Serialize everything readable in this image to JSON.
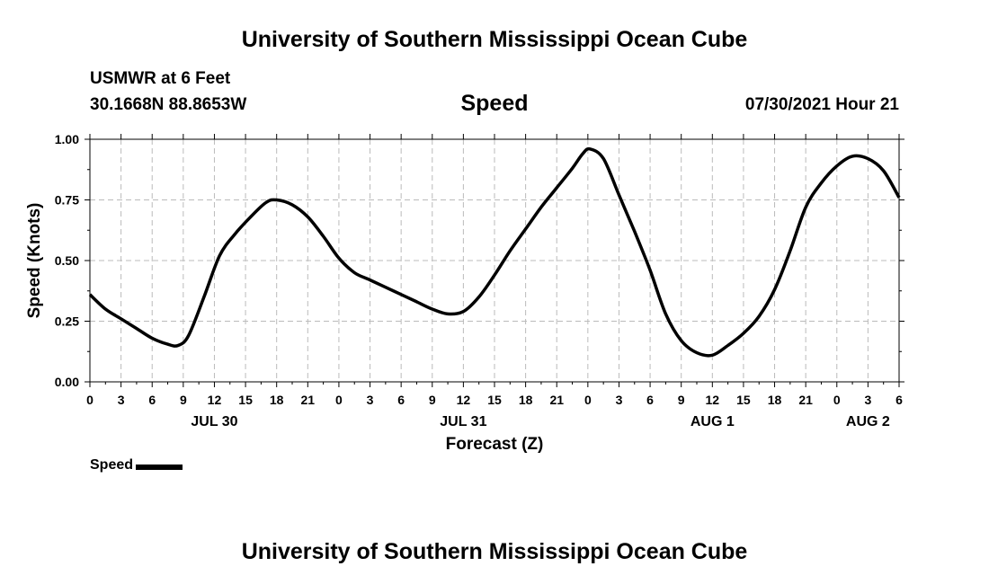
{
  "header": {
    "title": "University of Southern Mississippi Ocean Cube",
    "station": "USMWR at 6 Feet",
    "coords": "30.1668N  88.8653W",
    "date_label": "07/30/2021 Hour 21"
  },
  "footer": {
    "title": "University of Southern Mississippi Ocean Cube"
  },
  "legend": {
    "label": "Speed"
  },
  "chart_data": {
    "type": "line",
    "title": "Speed",
    "xlabel": "Forecast (Z)",
    "ylabel": "Speed (Knots)",
    "ylim": [
      0,
      1
    ],
    "yticks": [
      "0.00",
      "0.25",
      "0.50",
      "0.75",
      "1.00"
    ],
    "xlim": [
      0,
      78
    ],
    "xticks": [
      "0",
      "3",
      "6",
      "9",
      "12",
      "15",
      "18",
      "21",
      "0",
      "3",
      "6",
      "9",
      "12",
      "15",
      "18",
      "21",
      "0",
      "3",
      "6",
      "9",
      "12",
      "15",
      "18",
      "21",
      "0",
      "3",
      "6"
    ],
    "date_labels": [
      {
        "label": "JUL 30",
        "x": 12
      },
      {
        "label": "JUL 31",
        "x": 36
      },
      {
        "label": "AUG 1",
        "x": 60
      },
      {
        "label": "AUG 2",
        "x": 75
      }
    ],
    "grid": true,
    "line_color": "#000000",
    "series": [
      {
        "name": "Speed",
        "x": [
          0,
          1.5,
          3,
          4.5,
          6,
          7.5,
          8.5,
          9.5,
          11,
          12.5,
          14,
          15.5,
          17,
          18,
          19.5,
          21,
          22.5,
          24,
          25.5,
          27,
          28.5,
          30,
          31.5,
          33,
          34.5,
          36,
          37.5,
          39,
          40.5,
          42,
          43.5,
          45,
          46.5,
          47.5,
          48.2,
          49.5,
          51,
          52.5,
          54,
          55.5,
          57,
          58.5,
          60,
          61.5,
          63,
          64.5,
          66,
          67.5,
          69,
          70.5,
          72,
          73.5,
          75,
          76.5,
          78
        ],
        "y": [
          0.36,
          0.3,
          0.26,
          0.22,
          0.18,
          0.155,
          0.15,
          0.19,
          0.35,
          0.52,
          0.61,
          0.68,
          0.74,
          0.75,
          0.73,
          0.68,
          0.6,
          0.51,
          0.45,
          0.42,
          0.39,
          0.36,
          0.33,
          0.3,
          0.28,
          0.29,
          0.35,
          0.44,
          0.54,
          0.63,
          0.72,
          0.8,
          0.88,
          0.94,
          0.96,
          0.92,
          0.77,
          0.62,
          0.46,
          0.28,
          0.17,
          0.12,
          0.11,
          0.15,
          0.2,
          0.27,
          0.38,
          0.54,
          0.72,
          0.82,
          0.89,
          0.93,
          0.92,
          0.87,
          0.76
        ]
      }
    ]
  }
}
